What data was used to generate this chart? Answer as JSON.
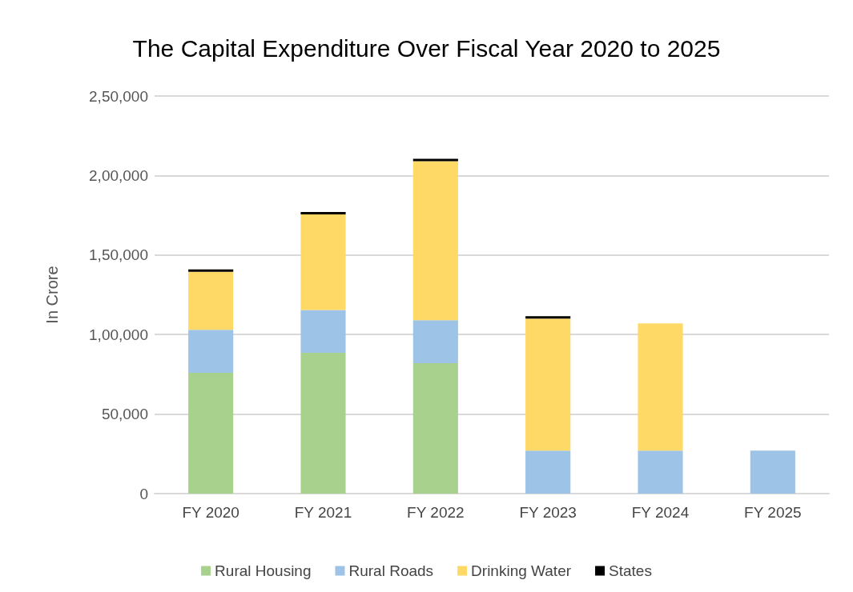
{
  "chart_data": {
    "type": "bar",
    "title": "The Capital Expenditure Over Fiscal Year 2020 to 2025",
    "ylabel": "In Crore",
    "categories": [
      "FY 2020",
      "FY 2021",
      "FY 2022",
      "FY 2023",
      "FY 2024",
      "FY 2025"
    ],
    "series": [
      {
        "name": "Rural Housing",
        "color": "#a9d18e",
        "values": [
          76000,
          88500,
          82000,
          null,
          null,
          null
        ]
      },
      {
        "name": "Rural Roads",
        "color": "#9dc3e6",
        "values": [
          27000,
          27000,
          27000,
          27000,
          27000,
          27000
        ]
      },
      {
        "name": "Drinking Water",
        "color": "#ffd966",
        "values": [
          36500,
          60000,
          100000,
          83000,
          80000,
          null
        ]
      },
      {
        "name": "States",
        "color": "#000000",
        "values": [
          1500,
          1500,
          1500,
          1500,
          null,
          null
        ]
      }
    ],
    "stacked": true,
    "ylim": [
      0,
      250000
    ],
    "yticks": [
      0,
      {
        "value": 50000,
        "label": "50,000"
      },
      {
        "value": 100000,
        "label": "1,00,000"
      },
      {
        "value": 150000,
        "label": "1,50,000"
      },
      {
        "value": 200000,
        "label": "2,00,000"
      },
      {
        "value": 250000,
        "label": "2,50,000"
      }
    ],
    "grid": "y",
    "legend": "bottom"
  }
}
